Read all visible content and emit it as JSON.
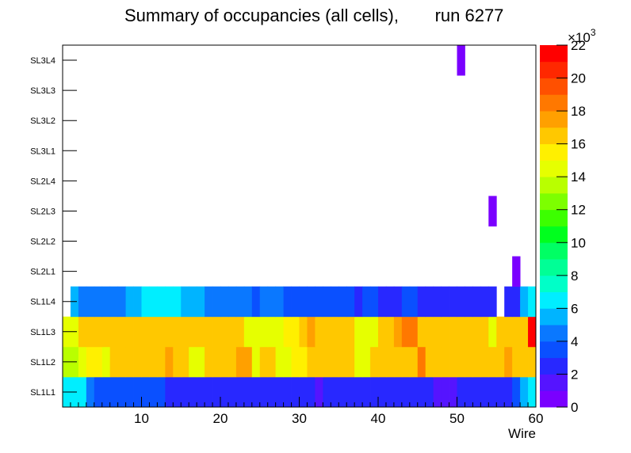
{
  "chart_data": {
    "type": "heatmap",
    "title": "Summary of occupancies (all cells),",
    "run_label": "run 6277",
    "xlabel": "Wire",
    "xlim": [
      0,
      60
    ],
    "x_ticks": [
      10,
      20,
      30,
      40,
      50,
      60
    ],
    "y_categories": [
      "SL1L1",
      "SL1L2",
      "SL1L3",
      "SL1L4",
      "SL2L1",
      "SL2L2",
      "SL2L3",
      "SL2L4",
      "SL3L1",
      "SL3L2",
      "SL3L3",
      "SL3L4"
    ],
    "colorbar": {
      "min": 0,
      "max": 22,
      "multiplier_label": "×10",
      "multiplier_exponent": "3",
      "tick_values": [
        0,
        2,
        4,
        6,
        8,
        10,
        12,
        14,
        16,
        18,
        20,
        22
      ],
      "palette": [
        "#7a00ff",
        "#5514ff",
        "#2828ff",
        "#0a50ff",
        "#0a78ff",
        "#00b4ff",
        "#00eeff",
        "#00ffc8",
        "#00ff96",
        "#00ff64",
        "#00ff1e",
        "#3cff00",
        "#7dff00",
        "#b9ff00",
        "#e6ff00",
        "#fff000",
        "#ffc800",
        "#ffa000",
        "#ff7800",
        "#ff5000",
        "#ff2800",
        "#ff0000"
      ]
    },
    "rows": [
      {
        "layer": "SL1L1",
        "values": [
          6.5,
          6.5,
          6.5,
          4,
          3,
          3,
          3,
          3,
          3,
          3,
          3,
          3,
          3,
          2,
          2,
          2,
          2,
          2,
          2,
          2,
          2,
          2,
          2,
          2,
          2,
          2,
          2,
          2,
          2,
          2,
          2,
          2,
          1.5,
          2,
          2,
          2,
          2,
          2,
          2,
          2,
          2,
          2,
          2,
          2,
          2,
          2,
          2,
          1.5,
          1.5,
          1.5,
          2,
          2,
          2,
          2,
          2,
          2,
          2,
          3.5,
          5,
          6.5
        ]
      },
      {
        "layer": "SL1L2",
        "values": [
          13.5,
          13.5,
          15,
          15.5,
          15.5,
          14,
          16,
          16,
          16,
          16,
          16,
          16,
          16,
          17.5,
          16,
          16,
          15,
          15,
          16,
          16,
          16,
          16,
          17,
          17,
          15,
          16,
          16,
          14,
          14,
          15.5,
          15.5,
          16,
          16,
          16,
          16,
          16,
          16,
          15,
          15,
          16,
          16.5,
          16,
          16,
          16,
          16,
          18,
          16,
          16,
          16,
          16,
          16,
          16,
          16,
          16,
          16,
          16,
          17,
          16,
          16,
          16
        ]
      },
      {
        "layer": "SL1L3",
        "values": [
          14,
          14,
          16,
          16,
          16,
          16,
          16,
          16,
          16,
          16,
          16,
          16,
          16.5,
          16.5,
          16.5,
          16,
          16,
          16,
          16,
          16,
          16,
          16,
          16,
          15,
          15,
          14,
          14,
          15,
          15.5,
          15.5,
          16,
          17,
          16,
          16,
          16,
          16,
          16,
          15,
          15,
          15,
          16.5,
          16,
          17,
          18,
          18,
          16,
          16.5,
          16,
          16.5,
          16,
          16,
          16,
          16,
          16,
          15,
          16,
          16,
          16,
          16,
          21
        ]
      },
      {
        "layer": "SL1L4",
        "values": [
          0,
          5,
          4,
          4,
          4,
          4,
          4,
          4,
          5,
          5,
          6,
          6,
          6,
          6,
          6,
          5,
          5,
          5,
          4,
          4,
          4,
          4,
          4,
          4,
          3,
          4,
          4,
          4,
          3,
          3,
          3,
          3,
          3,
          3,
          3,
          3,
          3,
          2,
          3,
          3,
          2,
          2,
          2,
          3,
          3,
          2,
          2,
          2,
          2,
          2,
          2,
          2,
          2,
          2,
          2,
          0,
          2,
          2,
          5,
          6
        ]
      },
      {
        "layer": "SL2L1",
        "values": [
          0,
          0,
          0,
          0,
          0,
          0,
          0,
          0,
          0,
          0,
          0,
          0,
          0,
          0,
          0,
          0,
          0,
          0,
          0,
          0,
          0,
          0,
          0,
          0,
          0,
          0,
          0,
          0,
          0,
          0,
          0,
          0,
          0,
          0,
          0,
          0,
          0,
          0,
          0,
          0,
          0,
          0,
          0,
          0,
          0,
          0,
          0,
          0,
          0,
          0,
          0,
          0,
          0,
          0,
          0,
          0,
          0,
          0.5,
          0,
          0
        ]
      },
      {
        "layer": "SL2L2",
        "values": [
          0,
          0,
          0,
          0,
          0,
          0,
          0,
          0,
          0,
          0,
          0,
          0,
          0,
          0,
          0,
          0,
          0,
          0,
          0,
          0,
          0,
          0,
          0,
          0,
          0,
          0,
          0,
          0,
          0,
          0,
          0,
          0,
          0,
          0,
          0,
          0,
          0,
          0,
          0,
          0,
          0,
          0,
          0,
          0,
          0,
          0,
          0,
          0,
          0,
          0,
          0,
          0,
          0,
          0,
          0,
          0,
          0,
          0,
          0,
          0
        ]
      },
      {
        "layer": "SL2L3",
        "values": [
          0,
          0,
          0,
          0,
          0,
          0,
          0,
          0,
          0,
          0,
          0,
          0,
          0,
          0,
          0,
          0,
          0,
          0,
          0,
          0,
          0,
          0,
          0,
          0,
          0,
          0,
          0,
          0,
          0,
          0,
          0,
          0,
          0,
          0,
          0,
          0,
          0,
          0,
          0,
          0,
          0,
          0,
          0,
          0,
          0,
          0,
          0,
          0,
          0,
          0,
          0,
          0,
          0,
          0,
          0.5,
          0,
          0,
          0,
          0,
          0
        ]
      },
      {
        "layer": "SL2L4",
        "values": [
          0,
          0,
          0,
          0,
          0,
          0,
          0,
          0,
          0,
          0,
          0,
          0,
          0,
          0,
          0,
          0,
          0,
          0,
          0,
          0,
          0,
          0,
          0,
          0,
          0,
          0,
          0,
          0,
          0,
          0,
          0,
          0,
          0,
          0,
          0,
          0,
          0,
          0,
          0,
          0,
          0,
          0,
          0,
          0,
          0,
          0,
          0,
          0,
          0,
          0,
          0,
          0,
          0,
          0,
          0,
          0,
          0,
          0,
          0,
          0
        ]
      },
      {
        "layer": "SL3L1",
        "values": [
          0,
          0,
          0,
          0,
          0,
          0,
          0,
          0,
          0,
          0,
          0,
          0,
          0,
          0,
          0,
          0,
          0,
          0,
          0,
          0,
          0,
          0,
          0,
          0,
          0,
          0,
          0,
          0,
          0,
          0,
          0,
          0,
          0,
          0,
          0,
          0,
          0,
          0,
          0,
          0,
          0,
          0,
          0,
          0,
          0,
          0,
          0,
          0,
          0,
          0,
          0,
          0,
          0,
          0,
          0,
          0,
          0,
          0,
          0,
          0
        ]
      },
      {
        "layer": "SL3L2",
        "values": [
          0,
          0,
          0,
          0,
          0,
          0,
          0,
          0,
          0,
          0,
          0,
          0,
          0,
          0,
          0,
          0,
          0,
          0,
          0,
          0,
          0,
          0,
          0,
          0,
          0,
          0,
          0,
          0,
          0,
          0,
          0,
          0,
          0,
          0,
          0,
          0,
          0,
          0,
          0,
          0,
          0,
          0,
          0,
          0,
          0,
          0,
          0,
          0,
          0,
          0,
          0,
          0,
          0,
          0,
          0,
          0,
          0,
          0,
          0,
          0
        ]
      },
      {
        "layer": "SL3L3",
        "values": [
          0,
          0,
          0,
          0,
          0,
          0,
          0,
          0,
          0,
          0,
          0,
          0,
          0,
          0,
          0,
          0,
          0,
          0,
          0,
          0,
          0,
          0,
          0,
          0,
          0,
          0,
          0,
          0,
          0,
          0,
          0,
          0,
          0,
          0,
          0,
          0,
          0,
          0,
          0,
          0,
          0,
          0,
          0,
          0,
          0,
          0,
          0,
          0,
          0,
          0,
          0,
          0,
          0,
          0,
          0,
          0,
          0,
          0,
          0,
          0
        ]
      },
      {
        "layer": "SL3L4",
        "values": [
          0,
          0,
          0,
          0,
          0,
          0,
          0,
          0,
          0,
          0,
          0,
          0,
          0,
          0,
          0,
          0,
          0,
          0,
          0,
          0,
          0,
          0,
          0,
          0,
          0,
          0,
          0,
          0,
          0,
          0,
          0,
          0,
          0,
          0,
          0,
          0,
          0,
          0,
          0,
          0,
          0,
          0,
          0,
          0,
          0,
          0,
          0,
          0,
          0,
          0,
          0.5,
          0,
          0,
          0,
          0,
          0,
          0,
          0,
          0,
          0
        ]
      }
    ]
  }
}
